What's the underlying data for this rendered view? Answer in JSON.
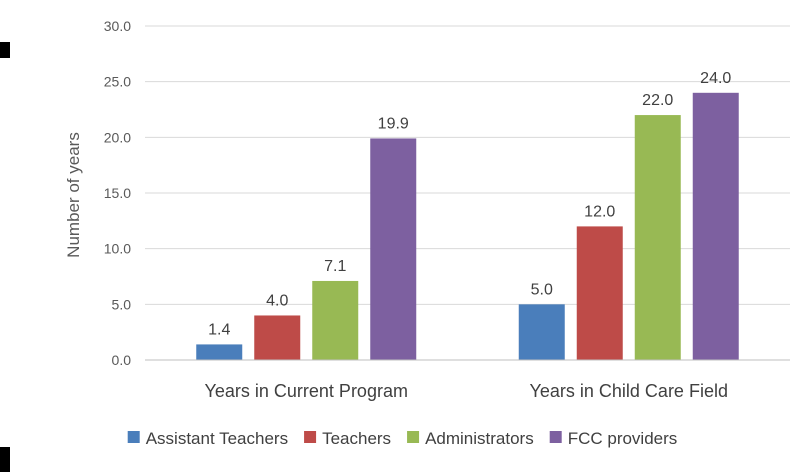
{
  "chart_data": {
    "type": "bar",
    "ylabel": "Number of years",
    "ylim": [
      0,
      30
    ],
    "yticks": [
      "0.0",
      "5.0",
      "10.0",
      "15.0",
      "20.0",
      "25.0",
      "30.0"
    ],
    "grid": true,
    "legend_position": "bottom",
    "categories": [
      "Years in Current Program",
      "Years in Child Care Field"
    ],
    "series": [
      {
        "name": "Assistant Teachers",
        "values": [
          1.4,
          5.0
        ],
        "labels": [
          "1.4",
          "5.0"
        ],
        "color": "#4a7ebb"
      },
      {
        "name": "Teachers",
        "values": [
          4.0,
          12.0
        ],
        "labels": [
          "4.0",
          "12.0"
        ],
        "color": "#be4b48"
      },
      {
        "name": "Administrators",
        "values": [
          7.1,
          22.0
        ],
        "labels": [
          "7.1",
          "22.0"
        ],
        "color": "#98b954"
      },
      {
        "name": "FCC providers",
        "values": [
          19.9,
          24.0
        ],
        "labels": [
          "19.9",
          "24.0"
        ],
        "color": "#7d60a0"
      }
    ]
  }
}
